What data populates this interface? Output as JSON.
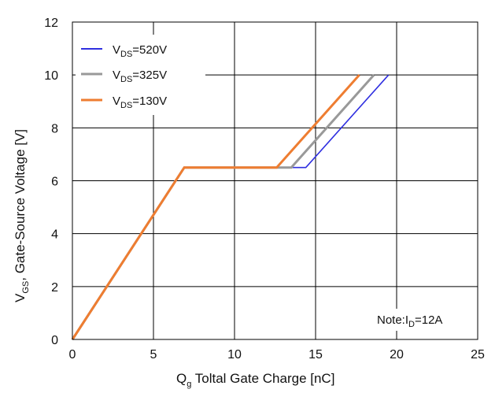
{
  "chart_data": {
    "type": "line",
    "xlabel": {
      "main": "Q",
      "sub": "g",
      "rest": " Toltal Gate Charge [nC]"
    },
    "ylabel": {
      "main": "V",
      "sub": "GS",
      "rest": ", Gate-Source Voltage [V]"
    },
    "xlim": [
      0,
      25
    ],
    "ylim": [
      0,
      12
    ],
    "xticks": [
      0,
      5,
      10,
      15,
      20,
      25
    ],
    "yticks": [
      0,
      2,
      4,
      6,
      8,
      10,
      12
    ],
    "grid": true,
    "legend_position": "top-left",
    "series": [
      {
        "name_main": "V",
        "name_sub": "DS",
        "name_rest": "=520V",
        "color": "#2f2fe0",
        "x": [
          0,
          6.9,
          14.4,
          19.5
        ],
        "y": [
          0,
          6.5,
          6.5,
          10
        ]
      },
      {
        "name_main": "V",
        "name_sub": "DS",
        "name_rest": "=325V",
        "color": "#999999",
        "x": [
          0,
          6.9,
          13.5,
          18.6
        ],
        "y": [
          0,
          6.5,
          6.5,
          10
        ]
      },
      {
        "name_main": "V",
        "name_sub": "DS",
        "name_rest": "=130V",
        "color": "#ee7d31",
        "x": [
          0,
          6.9,
          12.6,
          17.7
        ],
        "y": [
          0,
          6.5,
          6.5,
          10
        ]
      }
    ],
    "annotation": {
      "main": "Note:I",
      "sub": "D",
      "rest": "=12A"
    }
  }
}
